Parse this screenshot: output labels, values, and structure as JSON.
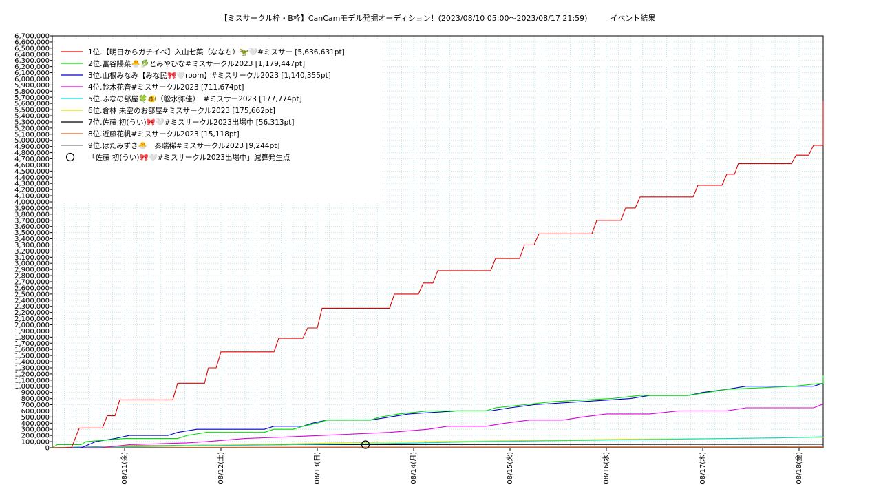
{
  "title": "【ミスサークル枠・B枠】CanCamモデル発掘オーディション！(2023/08/10 05:00〜2023/08/17 21:59)　　　イベント結果",
  "chart_data": {
    "type": "line",
    "title": "【ミスサークル枠・B枠】CanCamモデル発掘オーディション！(2023/08/10 05:00〜2023/08/17 21:59)　　　イベント結果",
    "xlabel": "",
    "ylabel": "",
    "xlim": [
      0,
      8
    ],
    "ylim": [
      0,
      6700000
    ],
    "y_tick_step": 100000,
    "x_ticks": [
      {
        "x": 0.75,
        "label": "08/11(金)"
      },
      {
        "x": 1.75,
        "label": "08/12(土)"
      },
      {
        "x": 2.75,
        "label": "08/13(日)"
      },
      {
        "x": 3.75,
        "label": "08/14(月)"
      },
      {
        "x": 4.75,
        "label": "08/15(火)"
      },
      {
        "x": 5.75,
        "label": "08/16(水)"
      },
      {
        "x": 6.75,
        "label": "08/17(木)"
      },
      {
        "x": 7.75,
        "label": "08/18(金)"
      }
    ],
    "grid": true,
    "legend_position": "top-left",
    "series": [
      {
        "name": "1位.【明日からガチイベ】入山七菜（ななち）🦖🤍#ミスサー [5,636,631pt]",
        "color": "#e00000",
        "points": [
          [
            0,
            0
          ],
          [
            0.1,
            0
          ],
          [
            0.2,
            5000
          ],
          [
            0.28,
            320000
          ],
          [
            0.52,
            320000
          ],
          [
            0.57,
            520000
          ],
          [
            0.65,
            520000
          ],
          [
            0.7,
            780000
          ],
          [
            1.25,
            780000
          ],
          [
            1.3,
            1050000
          ],
          [
            1.58,
            1050000
          ],
          [
            1.62,
            1300000
          ],
          [
            1.7,
            1300000
          ],
          [
            1.75,
            1560000
          ],
          [
            2.3,
            1560000
          ],
          [
            2.35,
            1780000
          ],
          [
            2.6,
            1780000
          ],
          [
            2.65,
            1950000
          ],
          [
            2.75,
            1950000
          ],
          [
            2.8,
            2270000
          ],
          [
            3.5,
            2270000
          ],
          [
            3.55,
            2500000
          ],
          [
            3.8,
            2500000
          ],
          [
            3.85,
            2680000
          ],
          [
            3.95,
            2680000
          ],
          [
            4.0,
            2880000
          ],
          [
            4.55,
            2880000
          ],
          [
            4.6,
            3080000
          ],
          [
            4.85,
            3080000
          ],
          [
            4.9,
            3300000
          ],
          [
            5.0,
            3300000
          ],
          [
            5.05,
            3480000
          ],
          [
            5.6,
            3480000
          ],
          [
            5.65,
            3700000
          ],
          [
            5.9,
            3700000
          ],
          [
            5.95,
            3900000
          ],
          [
            6.05,
            3900000
          ],
          [
            6.1,
            4080000
          ],
          [
            6.65,
            4080000
          ],
          [
            6.7,
            4270000
          ],
          [
            6.95,
            4270000
          ],
          [
            7.0,
            4450000
          ],
          [
            7.08,
            4450000
          ],
          [
            7.12,
            4620000
          ],
          [
            7.67,
            4620000
          ],
          [
            7.72,
            4760000
          ],
          [
            7.85,
            4760000
          ],
          [
            7.9,
            4920000
          ],
          [
            8.1,
            4920000
          ],
          [
            8.15,
            5200000
          ],
          [
            8.18,
            5636631
          ],
          [
            8.4,
            5636631
          ]
        ]
      },
      {
        "name": "2位.冨谷陽菜🐣🥬とみやひな#ミスサークル2023 [1,179,447pt]",
        "color": "#00dd00",
        "points": [
          [
            0,
            0
          ],
          [
            0.05,
            50000
          ],
          [
            0.3,
            50000
          ],
          [
            0.35,
            100000
          ],
          [
            0.75,
            150000
          ],
          [
            1.3,
            150000
          ],
          [
            1.4,
            200000
          ],
          [
            1.6,
            250000
          ],
          [
            2.2,
            250000
          ],
          [
            2.3,
            300000
          ],
          [
            2.5,
            300000
          ],
          [
            2.6,
            350000
          ],
          [
            2.75,
            400000
          ],
          [
            2.85,
            450000
          ],
          [
            3.3,
            450000
          ],
          [
            3.4,
            500000
          ],
          [
            3.6,
            550000
          ],
          [
            3.9,
            600000
          ],
          [
            4.5,
            600000
          ],
          [
            4.6,
            650000
          ],
          [
            4.9,
            700000
          ],
          [
            5.2,
            750000
          ],
          [
            5.8,
            800000
          ],
          [
            6.1,
            850000
          ],
          [
            6.6,
            850000
          ],
          [
            6.8,
            900000
          ],
          [
            7.0,
            950000
          ],
          [
            7.7,
            1000000
          ],
          [
            8.0,
            1050000
          ],
          [
            8.1,
            1150000
          ],
          [
            8.2,
            1179447
          ],
          [
            8.4,
            1179447
          ]
        ]
      },
      {
        "name": "3位.山根みなみ【みな民🎀🤍room】#ミスサークル2023 [1,140,355pt]",
        "color": "#0000cc",
        "points": [
          [
            0,
            0
          ],
          [
            0.3,
            0
          ],
          [
            0.45,
            100000
          ],
          [
            0.65,
            150000
          ],
          [
            0.8,
            200000
          ],
          [
            1.2,
            200000
          ],
          [
            1.3,
            250000
          ],
          [
            1.5,
            300000
          ],
          [
            2.2,
            300000
          ],
          [
            2.3,
            350000
          ],
          [
            2.6,
            350000
          ],
          [
            2.7,
            400000
          ],
          [
            2.85,
            450000
          ],
          [
            3.3,
            450000
          ],
          [
            3.5,
            500000
          ],
          [
            3.7,
            550000
          ],
          [
            4.2,
            600000
          ],
          [
            4.55,
            600000
          ],
          [
            4.75,
            650000
          ],
          [
            5.0,
            700000
          ],
          [
            5.5,
            750000
          ],
          [
            6.0,
            800000
          ],
          [
            6.2,
            850000
          ],
          [
            6.6,
            850000
          ],
          [
            6.75,
            900000
          ],
          [
            7.0,
            950000
          ],
          [
            7.2,
            1000000
          ],
          [
            7.9,
            1000000
          ],
          [
            8.1,
            1050000
          ],
          [
            8.2,
            1140355
          ],
          [
            8.4,
            1140355
          ]
        ]
      },
      {
        "name": "4位.鈴木花音#ミスサークル2023 [711,674pt]",
        "color": "#dd00dd",
        "points": [
          [
            0,
            0
          ],
          [
            0.5,
            0
          ],
          [
            0.8,
            50000
          ],
          [
            1.4,
            80000
          ],
          [
            1.6,
            100000
          ],
          [
            2.0,
            150000
          ],
          [
            2.5,
            180000
          ],
          [
            2.8,
            200000
          ],
          [
            3.5,
            250000
          ],
          [
            3.9,
            300000
          ],
          [
            4.1,
            350000
          ],
          [
            4.5,
            350000
          ],
          [
            4.7,
            400000
          ],
          [
            4.95,
            450000
          ],
          [
            5.3,
            450000
          ],
          [
            5.5,
            500000
          ],
          [
            5.75,
            550000
          ],
          [
            6.2,
            550000
          ],
          [
            6.5,
            600000
          ],
          [
            7.0,
            600000
          ],
          [
            7.2,
            650000
          ],
          [
            7.9,
            650000
          ],
          [
            8.1,
            711674
          ],
          [
            8.4,
            711674
          ]
        ]
      },
      {
        "name": "5位.ふなの部屋🍀🐠（舩水弥佳）　#ミスサー2023 [177,774pt]",
        "color": "#00dddd",
        "points": [
          [
            0,
            0
          ],
          [
            1.0,
            20000
          ],
          [
            2.5,
            50000
          ],
          [
            3.5,
            70000
          ],
          [
            4.5,
            100000
          ],
          [
            5.5,
            120000
          ],
          [
            6.5,
            140000
          ],
          [
            7.5,
            160000
          ],
          [
            8.2,
            177774
          ],
          [
            8.4,
            177774
          ]
        ]
      },
      {
        "name": "6位.倉林 未空のお部屋#ミスサークル2023 [175,662pt]",
        "color": "#dddd00",
        "points": [
          [
            0,
            0
          ],
          [
            1.0,
            30000
          ],
          [
            2.0,
            50000
          ],
          [
            3.0,
            80000
          ],
          [
            4.0,
            100000
          ],
          [
            5.0,
            120000
          ],
          [
            6.0,
            140000
          ],
          [
            7.0,
            150000
          ],
          [
            8.0,
            170000
          ],
          [
            8.2,
            175662
          ],
          [
            8.4,
            175662
          ]
        ]
      },
      {
        "name": "7位.佐藤 初(うい)🎀🤍#ミスサークル2023出場中 [56,313pt]",
        "color": "#000000",
        "points": [
          [
            0,
            0
          ],
          [
            0.3,
            10000
          ],
          [
            0.8,
            30000
          ],
          [
            1.5,
            40000
          ],
          [
            2.5,
            50000
          ],
          [
            3.5,
            52000
          ],
          [
            5.0,
            54000
          ],
          [
            6.5,
            55000
          ],
          [
            8.2,
            56313
          ],
          [
            8.4,
            56313
          ]
        ]
      },
      {
        "name": "8位.近藤花帆#ミスサークル2023 [15,118pt]",
        "color": "#e06020",
        "points": [
          [
            0,
            0
          ],
          [
            1.0,
            5000
          ],
          [
            3.0,
            10000
          ],
          [
            5.0,
            12000
          ],
          [
            7.0,
            14000
          ],
          [
            8.2,
            15118
          ],
          [
            8.4,
            15118
          ]
        ]
      },
      {
        "name": "9位.はたみずき🐣　秦瑞稀#ミスサークル2023 [9,244pt]",
        "color": "#808080",
        "points": [
          [
            0,
            0
          ],
          [
            2.0,
            3000
          ],
          [
            4.0,
            6000
          ],
          [
            6.0,
            8000
          ],
          [
            8.2,
            9244
          ],
          [
            8.4,
            9244
          ]
        ]
      }
    ],
    "markers": [
      {
        "name": "「佐藤 初(うい)🎀🤍#ミスサークル2023出場中」減算発生点",
        "x": 3.25,
        "y": 50000
      }
    ]
  }
}
